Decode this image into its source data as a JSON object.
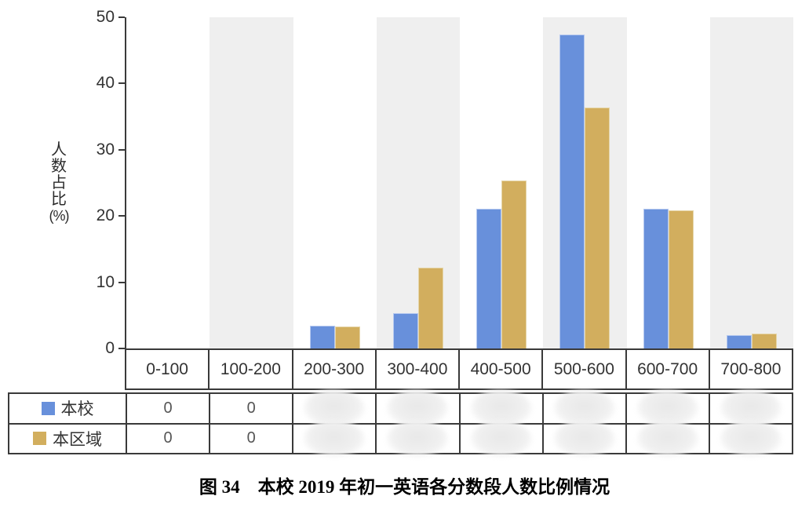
{
  "chart_data": {
    "type": "bar",
    "title": "图 34　本校 2019 年初一英语各分数段人数比例情况",
    "categories": [
      "0-100",
      "100-200",
      "200-300",
      "300-400",
      "400-500",
      "500-600",
      "600-700",
      "700-800"
    ],
    "series": [
      {
        "name": "本校",
        "color": "#6890db",
        "edge_color": "#b6c9ef",
        "values": [
          0,
          0,
          3.4,
          5.3,
          21.1,
          47.4,
          21.1,
          2.0
        ]
      },
      {
        "name": "本区域",
        "color": "#d2ae5e",
        "edge_color": "#e5d5a8",
        "values": [
          0,
          0,
          3.3,
          12.2,
          25.3,
          36.4,
          20.9,
          2.2
        ]
      }
    ],
    "xlabel": "",
    "ylabel": "人数占比(%)",
    "ylim": [
      0,
      50
    ],
    "yticks": [
      "0",
      "10",
      "20",
      "30",
      "40",
      "50"
    ],
    "grid": false,
    "legend_position": "table-left",
    "band_color": "#efefef",
    "banded_columns": [
      1,
      3,
      5,
      7
    ]
  },
  "table": {
    "rows": [
      {
        "label": "本校",
        "swatch": "#6890db",
        "cells": [
          "0",
          "0",
          null,
          null,
          null,
          null,
          null,
          null
        ]
      },
      {
        "label": "本区域",
        "swatch": "#d2ae5e",
        "cells": [
          "0",
          "0",
          null,
          null,
          null,
          null,
          null,
          null
        ]
      }
    ]
  },
  "caption": "图 34　本校 2019 年初一英语各分数段人数比例情况"
}
